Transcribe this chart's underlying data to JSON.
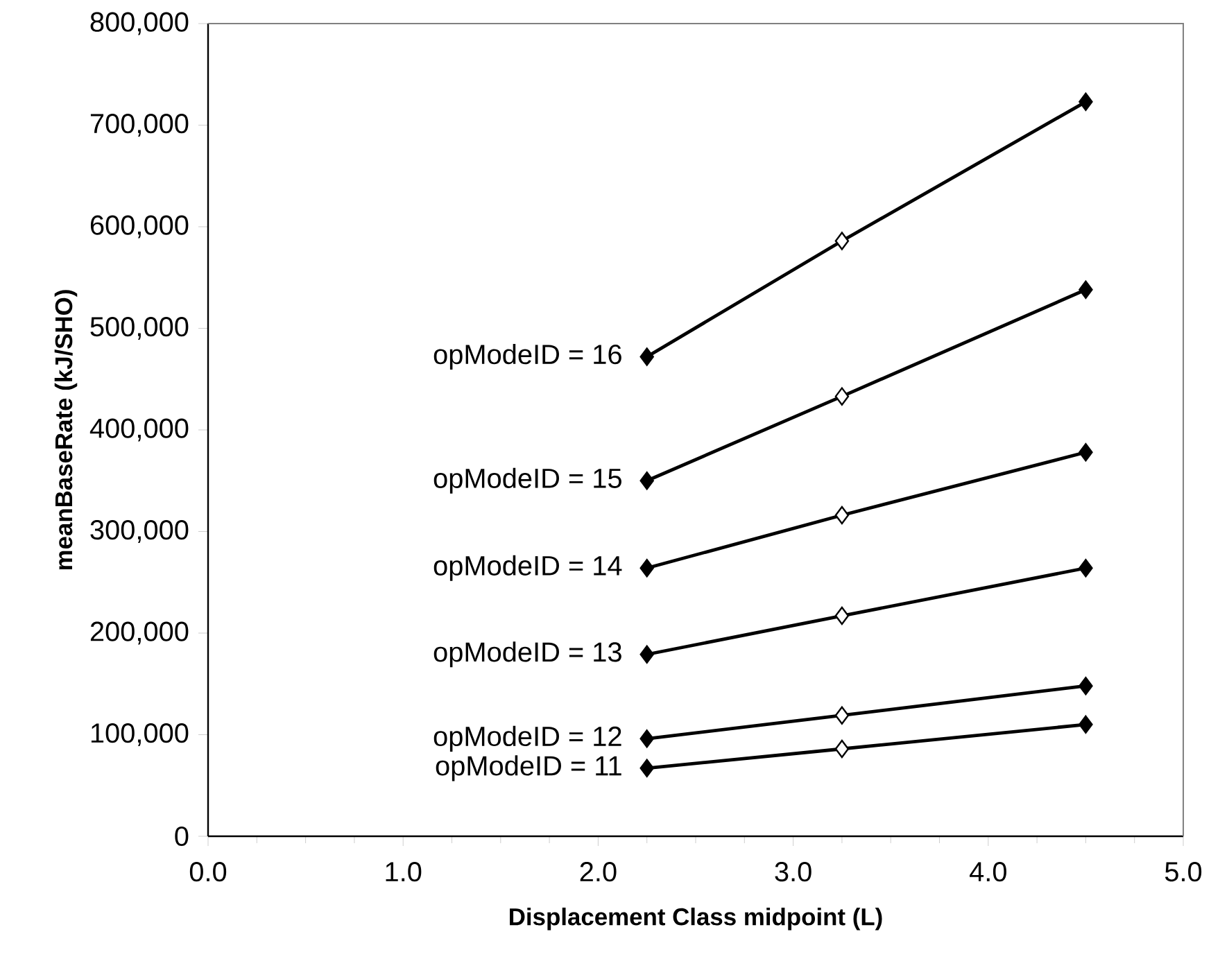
{
  "chart_data": {
    "type": "line",
    "xlabel": "Displacement Class midpoint (L)",
    "ylabel": "meanBaseRate (kJ/SHO)",
    "x": [
      2.25,
      3.25,
      4.5
    ],
    "series": [
      {
        "name": "opModeID = 11",
        "color": "#000000",
        "colors": [
          "#000000",
          "#ffffff",
          "#000000"
        ],
        "values": [
          67000,
          86000,
          110000
        ]
      },
      {
        "name": "opModeID = 12",
        "color": "#000000",
        "colors": [
          "#000000",
          "#ffffff",
          "#000000"
        ],
        "values": [
          96000,
          119000,
          148000
        ]
      },
      {
        "name": "opModeID = 13",
        "color": "#000000",
        "colors": [
          "#000000",
          "#ffffff",
          "#000000"
        ],
        "values": [
          179000,
          217000,
          264000
        ]
      },
      {
        "name": "opModeID = 14",
        "color": "#000000",
        "colors": [
          "#000000",
          "#ffffff",
          "#000000"
        ],
        "values": [
          264000,
          316000,
          378000
        ]
      },
      {
        "name": "opModeID = 15",
        "color": "#000000",
        "colors": [
          "#000000",
          "#ffffff",
          "#000000"
        ],
        "values": [
          350000,
          433000,
          538000
        ]
      },
      {
        "name": "opModeID = 16",
        "color": "#000000",
        "colors": [
          "#000000",
          "#ffffff",
          "#000000"
        ],
        "values": [
          472000,
          586000,
          723000
        ]
      }
    ],
    "xlim": [
      0,
      5
    ],
    "xticks": [
      {
        "value": 0,
        "label": "0.0"
      },
      {
        "value": 1,
        "label": "1.0"
      },
      {
        "value": 2,
        "label": "2.0"
      },
      {
        "value": 3,
        "label": "3.0"
      },
      {
        "value": 4,
        "label": "4.0"
      },
      {
        "value": 5,
        "label": "5.0"
      }
    ],
    "ylim": [
      0,
      800000
    ],
    "yticks": [
      {
        "value": 0,
        "label": "0"
      },
      {
        "value": 100000,
        "label": "100,000"
      },
      {
        "value": 200000,
        "label": "200,000"
      },
      {
        "value": 300000,
        "label": "300,000"
      },
      {
        "value": 400000,
        "label": "400,000"
      },
      {
        "value": 500000,
        "label": "500,000"
      },
      {
        "value": 600000,
        "label": "600,000"
      },
      {
        "value": 700000,
        "label": "700,000"
      },
      {
        "value": 800000,
        "label": "800,000"
      }
    ],
    "grid": false,
    "marker": "diamond",
    "line_style": "solid"
  }
}
